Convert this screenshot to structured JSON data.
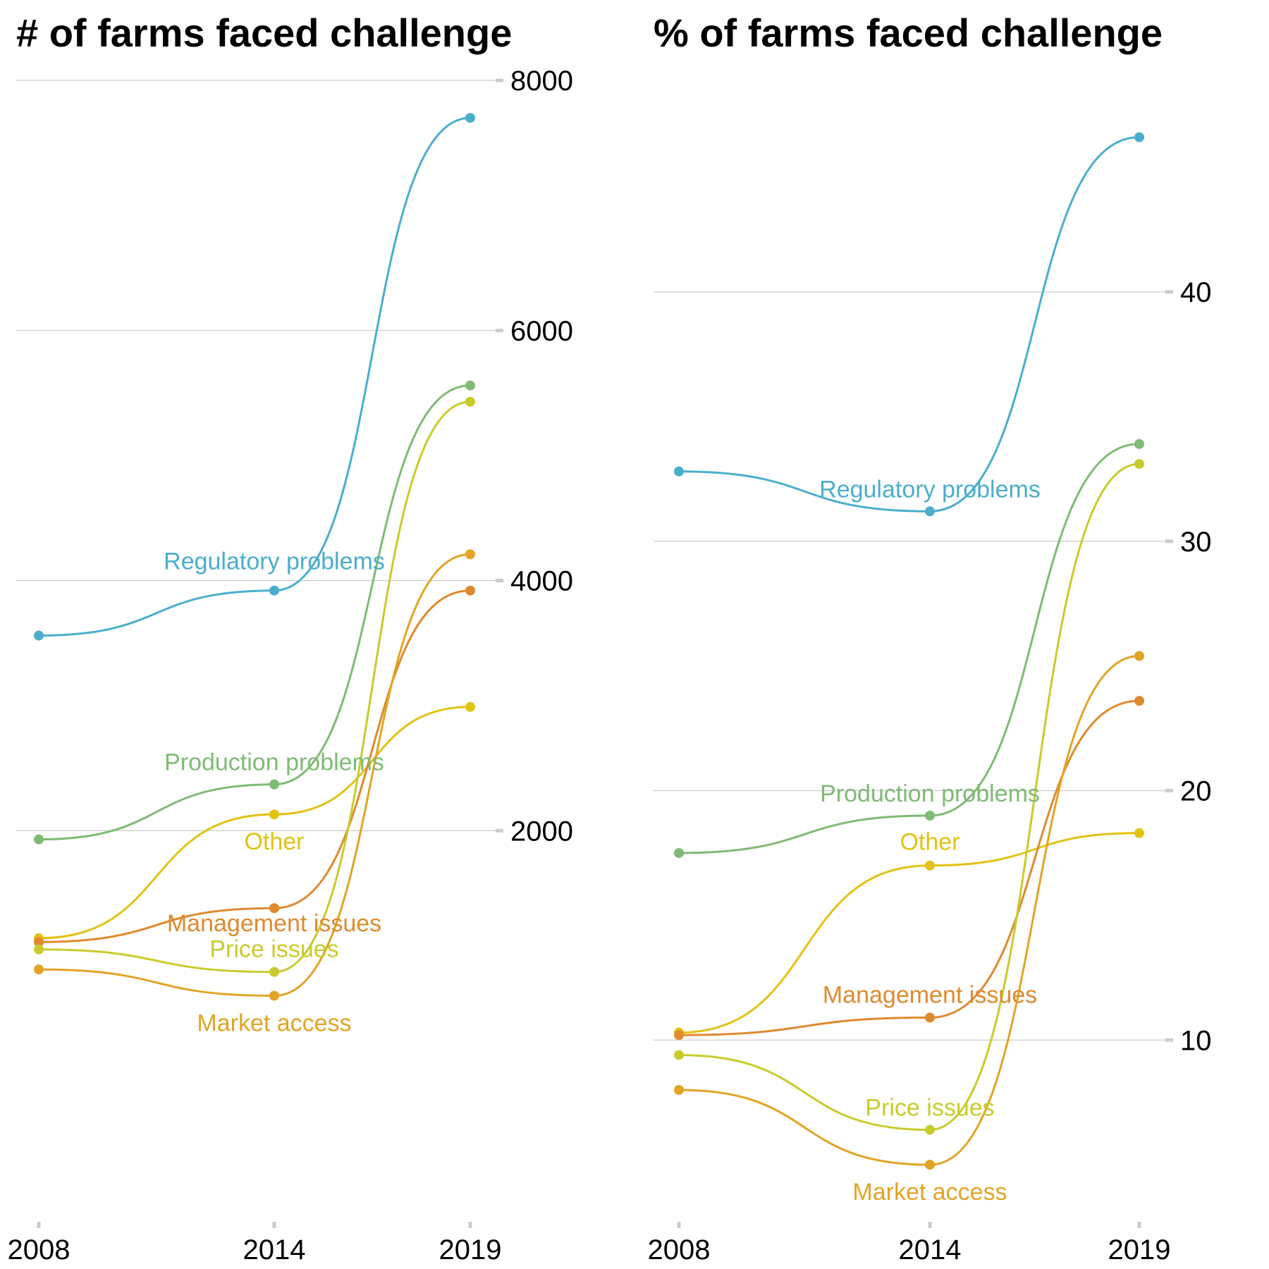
{
  "chart_data": [
    {
      "type": "line",
      "title": "# of farms faced challenge",
      "x": [
        "2008",
        "2014",
        "2019"
      ],
      "ylim": [
        0,
        8000
      ],
      "yticks": [
        2000,
        4000,
        6000,
        8000
      ],
      "grid": true,
      "y_axis_side": "right",
      "series": [
        {
          "name": "Regulatory problems",
          "color": "#4aaecb",
          "values": [
            3560,
            3920,
            7700
          ]
        },
        {
          "name": "Production problems",
          "color": "#7fbb74",
          "values": [
            1930,
            2370,
            5560
          ]
        },
        {
          "name": "Other",
          "color": "#e3c214",
          "values": [
            1140,
            2130,
            2990
          ]
        },
        {
          "name": "Management issues",
          "color": "#df8a2e",
          "values": [
            1110,
            1380,
            3920
          ]
        },
        {
          "name": "Price issues",
          "color": "#c9cb2c",
          "values": [
            1050,
            870,
            5430
          ]
        },
        {
          "name": "Market access",
          "color": "#e2a424",
          "values": [
            890,
            680,
            4210
          ]
        }
      ]
    },
    {
      "type": "line",
      "title": "% of farms faced challenge",
      "x": [
        "2008",
        "2014",
        "2019"
      ],
      "ylim": [
        0,
        50
      ],
      "yticks": [
        10,
        20,
        30,
        40
      ],
      "grid": true,
      "y_axis_side": "right",
      "series": [
        {
          "name": "Regulatory problems",
          "color": "#4aaecb",
          "values": [
            32.8,
            31.2,
            46.2
          ]
        },
        {
          "name": "Production problems",
          "color": "#7fbb74",
          "values": [
            17.5,
            19.0,
            33.9
          ]
        },
        {
          "name": "Other",
          "color": "#e3c214",
          "values": [
            10.3,
            17.0,
            18.3
          ]
        },
        {
          "name": "Management issues",
          "color": "#df8a2e",
          "values": [
            10.2,
            10.9,
            23.6
          ]
        },
        {
          "name": "Price issues",
          "color": "#c9cb2c",
          "values": [
            9.4,
            6.4,
            33.1
          ]
        },
        {
          "name": "Market access",
          "color": "#e2a424",
          "values": [
            8.0,
            5.0,
            25.4
          ]
        }
      ]
    }
  ]
}
